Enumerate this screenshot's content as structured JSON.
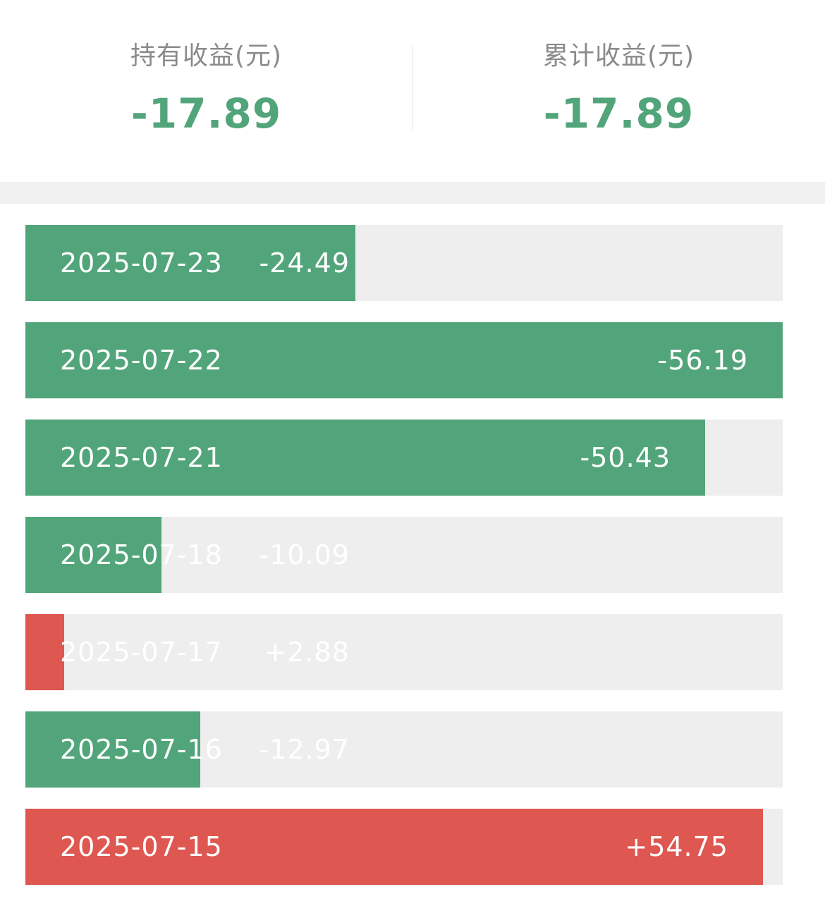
{
  "colors": {
    "loss": "#52a57a",
    "gain": "#de5750",
    "track": "#eeeeee",
    "label": "#8a8a8a"
  },
  "summary": {
    "holding": {
      "label": "持有收益(元)",
      "value": "-17.89"
    },
    "cumulative": {
      "label": "累计收益(元)",
      "value": "-17.89"
    }
  },
  "daily": {
    "max_abs": 56.19,
    "rows": [
      {
        "date": "2025-07-23",
        "amount": "-24.49",
        "value": -24.49,
        "direction": "loss"
      },
      {
        "date": "2025-07-22",
        "amount": "-56.19",
        "value": -56.19,
        "direction": "loss"
      },
      {
        "date": "2025-07-21",
        "amount": "-50.43",
        "value": -50.43,
        "direction": "loss"
      },
      {
        "date": "2025-07-18",
        "amount": "-10.09",
        "value": -10.09,
        "direction": "loss"
      },
      {
        "date": "2025-07-17",
        "amount": "+2.88",
        "value": 2.88,
        "direction": "gain"
      },
      {
        "date": "2025-07-16",
        "amount": "-12.97",
        "value": -12.97,
        "direction": "loss"
      },
      {
        "date": "2025-07-15",
        "amount": "+54.75",
        "value": 54.75,
        "direction": "gain"
      }
    ]
  }
}
